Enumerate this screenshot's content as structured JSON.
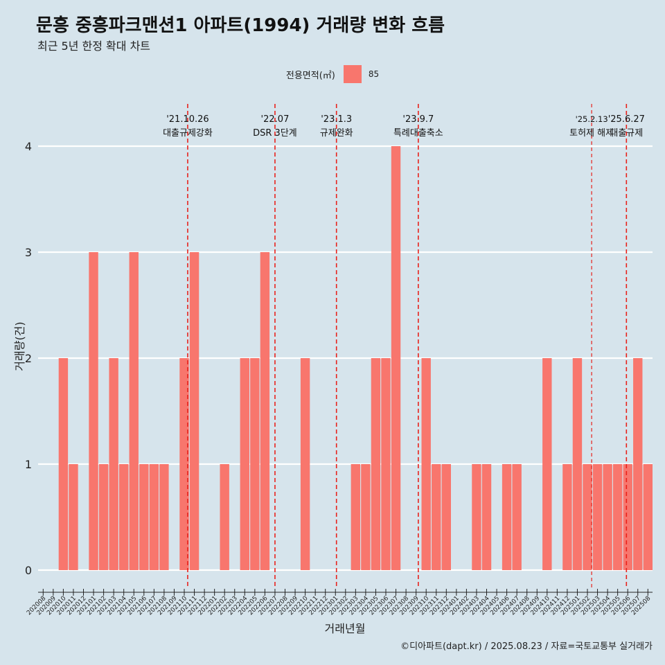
{
  "title": "문흥 중흥파크맨션1 아파트(1994) 거래량 변화 흐름",
  "subtitle": "최근 5년 한정 확대 차트",
  "caption": "©디아파트(dapt.kr) / 2025.08.23 / 자료=국토교통부 실거래가",
  "colors": {
    "background": "#d6e4ec",
    "bar": "#f8766d",
    "event_line": "#e8211b",
    "grid": "#ffffff"
  },
  "chart_data": {
    "type": "bar",
    "xlabel": "거래년월",
    "ylabel": "거래량(건)",
    "ylim": [
      0,
      4
    ],
    "yticks": [
      0,
      1,
      2,
      3,
      4
    ],
    "legend": {
      "title": "전용면적(㎡)",
      "placement": "top",
      "entries": [
        "85"
      ]
    },
    "grid": true,
    "categories": [
      "202008",
      "202009",
      "202010",
      "202011",
      "202012",
      "202101",
      "202102",
      "202103",
      "202104",
      "202105",
      "202106",
      "202107",
      "202108",
      "202109",
      "202110",
      "202111",
      "202112",
      "202201",
      "202202",
      "202203",
      "202204",
      "202205",
      "202206",
      "202207",
      "202208",
      "202209",
      "202210",
      "202211",
      "202212",
      "202301",
      "202302",
      "202303",
      "202304",
      "202305",
      "202306",
      "202307",
      "202308",
      "202309",
      "202310",
      "202311",
      "202312",
      "202401",
      "202402",
      "202403",
      "202404",
      "202405",
      "202406",
      "202407",
      "202408",
      "202409",
      "202410",
      "202411",
      "202412",
      "202501",
      "202502",
      "202503",
      "202504",
      "202505",
      "202506",
      "202507",
      "202508"
    ],
    "series": [
      {
        "name": "85",
        "values": [
          0,
          0,
          2,
          1,
          0,
          3,
          1,
          2,
          1,
          3,
          1,
          1,
          1,
          0,
          2,
          3,
          0,
          0,
          1,
          0,
          2,
          2,
          3,
          0,
          0,
          0,
          2,
          0,
          0,
          0,
          0,
          1,
          1,
          2,
          2,
          4,
          0,
          0,
          2,
          1,
          1,
          0,
          0,
          1,
          1,
          0,
          1,
          1,
          0,
          0,
          2,
          0,
          1,
          2,
          1,
          1,
          1,
          1,
          1,
          2,
          1
        ]
      }
    ],
    "annotations": [
      {
        "date_label": "'21.10.26",
        "text": "대출규제강화",
        "at": "202110",
        "offset": 0.84,
        "style": "dashed"
      },
      {
        "date_label": "'22.07",
        "text": "DSR 3단계",
        "at": "202207",
        "offset": 0.5,
        "style": "dashed"
      },
      {
        "date_label": "'23.1.3",
        "text": "규제완화",
        "at": "202301",
        "offset": 0.6,
        "style": "dashed"
      },
      {
        "date_label": "'23.9.7",
        "text": "특례대출축소",
        "at": "202309",
        "offset": 0.72,
        "style": "dashed"
      },
      {
        "date_label": "'25.2.13",
        "text": "토허제 해제",
        "at": "202502",
        "offset": 0.92,
        "style": "thin-dashed"
      },
      {
        "date_label": "'25.6.27",
        "text": "대출규제",
        "at": "202506",
        "offset": 0.37,
        "style": "dashed"
      }
    ]
  }
}
